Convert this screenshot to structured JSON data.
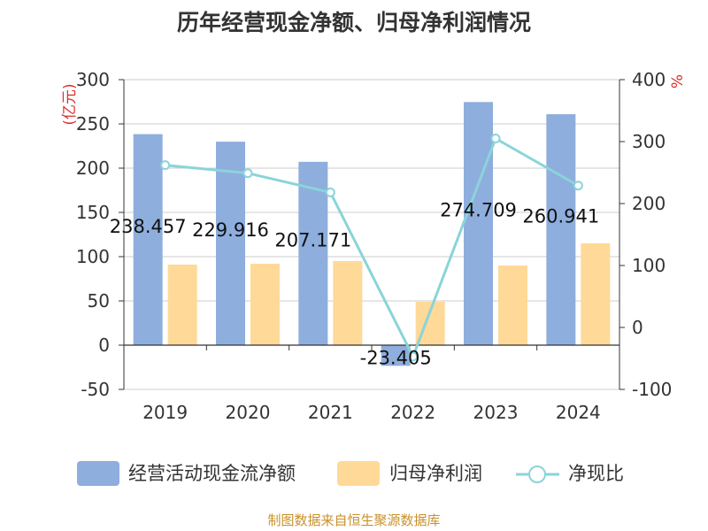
{
  "chart_data": {
    "type": "bar",
    "title": "历年经营现金净额、归母净利润情况",
    "categories": [
      "2019",
      "2020",
      "2021",
      "2022",
      "2023",
      "2024"
    ],
    "series": [
      {
        "name": "经营活动现金流净额",
        "type": "bar",
        "axis": "left",
        "values": [
          238.457,
          229.916,
          207.171,
          -23.405,
          274.709,
          260.941
        ],
        "data_labels": [
          "238.457",
          "229.916",
          "207.171",
          "-23.405",
          "274.709",
          "260.941"
        ]
      },
      {
        "name": "归母净利润",
        "type": "bar",
        "axis": "left",
        "values": [
          91,
          92,
          95,
          49,
          90,
          115
        ]
      },
      {
        "name": "净现比",
        "type": "line",
        "axis": "right",
        "values": [
          262,
          249,
          218,
          -47,
          305,
          229
        ]
      }
    ],
    "y_left": {
      "label": "(亿元)",
      "ylim": [
        -50,
        300
      ],
      "ticks": [
        "-50",
        "0",
        "50",
        "100",
        "150",
        "200",
        "250",
        "300"
      ]
    },
    "y_right": {
      "label": "%",
      "ylim": [
        -100,
        400
      ],
      "ticks": [
        "-100",
        "0",
        "100",
        "200",
        "300",
        "400"
      ]
    },
    "legend": {
      "position": "bottom"
    },
    "grid": true,
    "source": "制图数据来自恒生聚源数据库"
  },
  "colors": {
    "bar_cash": "#8eaedd",
    "bar_profit": "#ffd998",
    "line_ratio": "#8ad4d9",
    "axis": "#333333",
    "grid": "#cccccc",
    "unit_red": "#d9312f",
    "source_gold": "#c8912b"
  }
}
